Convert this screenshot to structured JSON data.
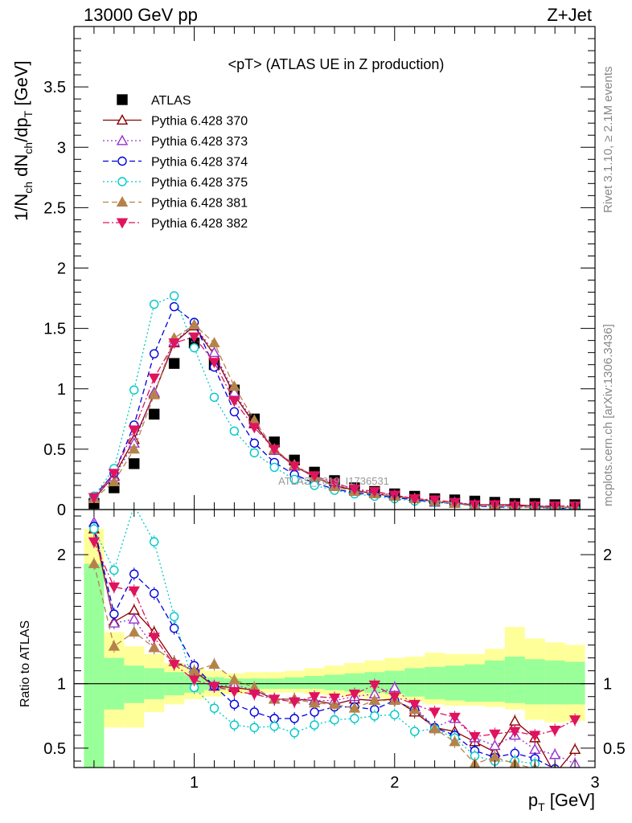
{
  "header": {
    "energy_label": "13000 GeV pp",
    "process_label": "Z+Jet"
  },
  "side_labels": {
    "rivet": "Rivet 3.1.10, ≥ 2.1M events",
    "mcplots": "mcplots.cern.ch [arXiv:1306.3436]"
  },
  "watermark": "ATLAS_2019_I1736531",
  "chart_data": [
    {
      "type": "scatter",
      "title": "<pT> (ATLAS UE in Z production)",
      "ylabel": "1/N_ch dN_ch/dp_T [GeV]",
      "xlabel": "p_T [GeV]",
      "xlim": [
        0.4,
        3.0
      ],
      "ylim": [
        0,
        4.0
      ],
      "y_ticks": [
        0,
        0.5,
        1,
        1.5,
        2,
        2.5,
        3,
        3.5
      ],
      "x": [
        0.5,
        0.6,
        0.7,
        0.8,
        0.9,
        1.0,
        1.1,
        1.2,
        1.3,
        1.4,
        1.5,
        1.6,
        1.7,
        1.8,
        1.9,
        2.0,
        2.1,
        2.2,
        2.3,
        2.4,
        2.5,
        2.6,
        2.7,
        2.8,
        2.9
      ],
      "legend_position": "top-left",
      "series": [
        {
          "name": "ATLAS",
          "color": "#000000",
          "marker": "square-filled",
          "line": "none",
          "values": [
            0.05,
            0.18,
            0.38,
            0.79,
            1.21,
            1.38,
            1.2,
            0.99,
            0.75,
            0.56,
            0.41,
            0.31,
            0.24,
            0.18,
            0.15,
            0.13,
            0.11,
            0.09,
            0.08,
            0.07,
            0.06,
            0.05,
            0.05,
            0.04,
            0.04
          ]
        },
        {
          "name": "Pythia 6.428 370",
          "color": "#8b0000",
          "marker": "triangle-up-open",
          "line": "solid",
          "values": [
            0.09,
            0.28,
            0.58,
            0.96,
            1.38,
            1.52,
            1.28,
            0.95,
            0.71,
            0.49,
            0.36,
            0.27,
            0.2,
            0.16,
            0.13,
            0.11,
            0.09,
            0.07,
            0.05,
            0.04,
            0.04,
            0.04,
            0.03,
            0.02,
            0.02
          ]
        },
        {
          "name": "Pythia 6.428 373",
          "color": "#9932cc",
          "marker": "triangle-up-open",
          "line": "dotted",
          "values": [
            0.1,
            0.27,
            0.55,
            0.97,
            1.39,
            1.53,
            1.3,
            0.97,
            0.72,
            0.49,
            0.36,
            0.27,
            0.21,
            0.17,
            0.14,
            0.12,
            0.09,
            0.06,
            0.06,
            0.04,
            0.03,
            0.03,
            0.02,
            0.02,
            0.02
          ]
        },
        {
          "name": "Pythia 6.428 374",
          "color": "#0000dd",
          "marker": "circle-open",
          "line": "dashed",
          "values": [
            0.11,
            0.3,
            0.7,
            1.29,
            1.68,
            1.55,
            1.18,
            0.81,
            0.55,
            0.39,
            0.29,
            0.22,
            0.17,
            0.14,
            0.12,
            0.1,
            0.08,
            0.06,
            0.05,
            0.03,
            0.02,
            0.02,
            0.02,
            0.01,
            0.01
          ]
        },
        {
          "name": "Pythia 6.428 375",
          "color": "#00c8c8",
          "marker": "circle-open",
          "line": "dotted",
          "values": [
            0.11,
            0.34,
            0.99,
            1.7,
            1.77,
            1.34,
            0.93,
            0.65,
            0.47,
            0.35,
            0.25,
            0.2,
            0.16,
            0.13,
            0.11,
            0.09,
            0.07,
            0.06,
            0.05,
            0.03,
            0.03,
            0.02,
            0.02,
            0.01,
            0.01
          ]
        },
        {
          "name": "Pythia 6.428 381",
          "color": "#b5834a",
          "marker": "triangle-up-filled",
          "line": "dashed",
          "values": [
            0.09,
            0.23,
            0.5,
            0.95,
            1.42,
            1.53,
            1.38,
            1.02,
            0.74,
            0.5,
            0.37,
            0.27,
            0.19,
            0.15,
            0.13,
            0.11,
            0.09,
            0.07,
            0.05,
            0.03,
            0.03,
            0.02,
            0.02,
            0.02,
            0.02
          ]
        },
        {
          "name": "Pythia 6.428 382",
          "color": "#e0135e",
          "marker": "triangle-down-filled",
          "line": "dashdot",
          "values": [
            0.1,
            0.3,
            0.66,
            1.09,
            1.38,
            1.43,
            1.22,
            0.9,
            0.68,
            0.5,
            0.36,
            0.28,
            0.22,
            0.17,
            0.15,
            0.12,
            0.09,
            0.08,
            0.06,
            0.04,
            0.04,
            0.03,
            0.03,
            0.03,
            0.03
          ]
        }
      ]
    },
    {
      "type": "scatter",
      "ylabel": "Ratio to ATLAS",
      "xlabel": "p_T [GeV]",
      "xlim": [
        0.4,
        3.0
      ],
      "ylim": [
        0.35,
        2.35
      ],
      "y_ticks": [
        0.5,
        1,
        2
      ],
      "x_ticks": [
        1,
        2,
        3
      ],
      "reference_line": 1,
      "band_edges": [
        0.45,
        0.55,
        0.65,
        0.75,
        0.85,
        0.95,
        1.05,
        1.15,
        1.25,
        1.35,
        1.45,
        1.55,
        1.65,
        1.75,
        1.85,
        1.95,
        2.05,
        2.15,
        2.25,
        2.35,
        2.45,
        2.55,
        2.65,
        2.75,
        2.85,
        2.95
      ],
      "band_green": {
        "color": "#99ff99",
        "low": [
          0.35,
          0.8,
          0.85,
          0.88,
          0.91,
          0.93,
          0.95,
          0.96,
          0.96,
          0.96,
          0.96,
          0.96,
          0.95,
          0.94,
          0.93,
          0.92,
          0.9,
          0.88,
          0.87,
          0.86,
          0.86,
          0.85,
          0.84,
          0.84,
          0.84
        ],
        "high": [
          1.93,
          1.2,
          1.14,
          1.12,
          1.09,
          1.07,
          1.05,
          1.04,
          1.04,
          1.04,
          1.05,
          1.06,
          1.07,
          1.08,
          1.09,
          1.1,
          1.12,
          1.13,
          1.14,
          1.15,
          1.18,
          1.21,
          1.19,
          1.18,
          1.17
        ]
      },
      "band_yellow": {
        "color": "#ffff99",
        "low": [
          0.35,
          0.66,
          0.66,
          0.78,
          0.84,
          0.88,
          0.9,
          0.92,
          0.93,
          0.93,
          0.93,
          0.92,
          0.91,
          0.9,
          0.89,
          0.88,
          0.86,
          0.84,
          0.83,
          0.83,
          0.82,
          0.8,
          0.72,
          0.7,
          0.71
        ],
        "high": [
          2.2,
          1.4,
          1.29,
          1.23,
          1.16,
          1.12,
          1.1,
          1.08,
          1.09,
          1.09,
          1.1,
          1.12,
          1.14,
          1.16,
          1.18,
          1.2,
          1.21,
          1.24,
          1.23,
          1.23,
          1.27,
          1.44,
          1.35,
          1.32,
          1.3
        ]
      },
      "x": [
        0.5,
        0.6,
        0.7,
        0.8,
        0.9,
        1.0,
        1.1,
        1.2,
        1.3,
        1.4,
        1.5,
        1.6,
        1.7,
        1.8,
        1.9,
        2.0,
        2.1,
        2.2,
        2.3,
        2.4,
        2.5,
        2.6,
        2.7,
        2.8,
        2.9
      ],
      "series": [
        {
          "name": "Pythia 6.428 370",
          "color": "#8b0000",
          "marker": "triangle-up-open",
          "line": "solid",
          "values": [
            2.2,
            1.48,
            1.57,
            1.4,
            1.17,
            1.1,
            0.98,
            0.97,
            0.95,
            0.88,
            0.88,
            0.87,
            0.84,
            0.88,
            0.87,
            0.88,
            0.78,
            0.66,
            0.63,
            0.55,
            0.47,
            0.71,
            0.58,
            0.3,
            0.49
          ]
        },
        {
          "name": "Pythia 6.428 373",
          "color": "#9932cc",
          "marker": "triangle-up-open",
          "line": "dotted",
          "values": [
            2.25,
            1.47,
            1.5,
            1.28,
            1.17,
            1.12,
            0.98,
            0.99,
            0.95,
            0.88,
            0.88,
            0.87,
            0.87,
            0.9,
            0.92,
            0.97,
            0.82,
            0.66,
            0.73,
            0.58,
            0.52,
            0.6,
            0.49,
            0.45,
            0.38
          ]
        },
        {
          "name": "Pythia 6.428 374",
          "color": "#0000dd",
          "marker": "circle-open",
          "line": "dashed",
          "values": [
            2.22,
            1.54,
            1.85,
            1.7,
            1.43,
            1.14,
            0.98,
            0.84,
            0.78,
            0.73,
            0.73,
            0.78,
            0.82,
            0.82,
            0.8,
            0.87,
            0.8,
            0.66,
            0.6,
            0.48,
            0.43,
            0.46,
            0.42,
            0.34,
            0.3
          ]
        },
        {
          "name": "Pythia 6.428 375",
          "color": "#00c8c8",
          "marker": "circle-open",
          "line": "dotted",
          "values": [
            2.2,
            1.88,
            2.38,
            2.1,
            1.52,
            0.97,
            0.81,
            0.68,
            0.66,
            0.67,
            0.62,
            0.68,
            0.72,
            0.73,
            0.75,
            0.76,
            0.63,
            0.65,
            0.58,
            0.44,
            0.4,
            0.4,
            0.38,
            0.28,
            0.3
          ]
        },
        {
          "name": "Pythia 6.428 381",
          "color": "#b5834a",
          "marker": "triangle-up-filled",
          "line": "dashed",
          "values": [
            1.93,
            1.29,
            1.4,
            1.28,
            1.17,
            1.1,
            1.15,
            1.03,
            0.97,
            0.88,
            0.88,
            0.85,
            0.84,
            0.81,
            0.87,
            0.87,
            0.8,
            0.65,
            0.55,
            0.38,
            0.43,
            0.38,
            0.34,
            0.33,
            0.3
          ]
        },
        {
          "name": "Pythia 6.428 382",
          "color": "#e0135e",
          "marker": "triangle-down-filled",
          "line": "dashdot",
          "values": [
            2.1,
            1.75,
            1.72,
            1.36,
            1.15,
            1.03,
            0.98,
            0.94,
            0.92,
            0.88,
            0.86,
            0.9,
            0.89,
            0.92,
            0.99,
            0.9,
            0.84,
            0.78,
            0.74,
            0.59,
            0.61,
            0.63,
            0.6,
            0.64,
            0.72
          ]
        }
      ]
    }
  ]
}
